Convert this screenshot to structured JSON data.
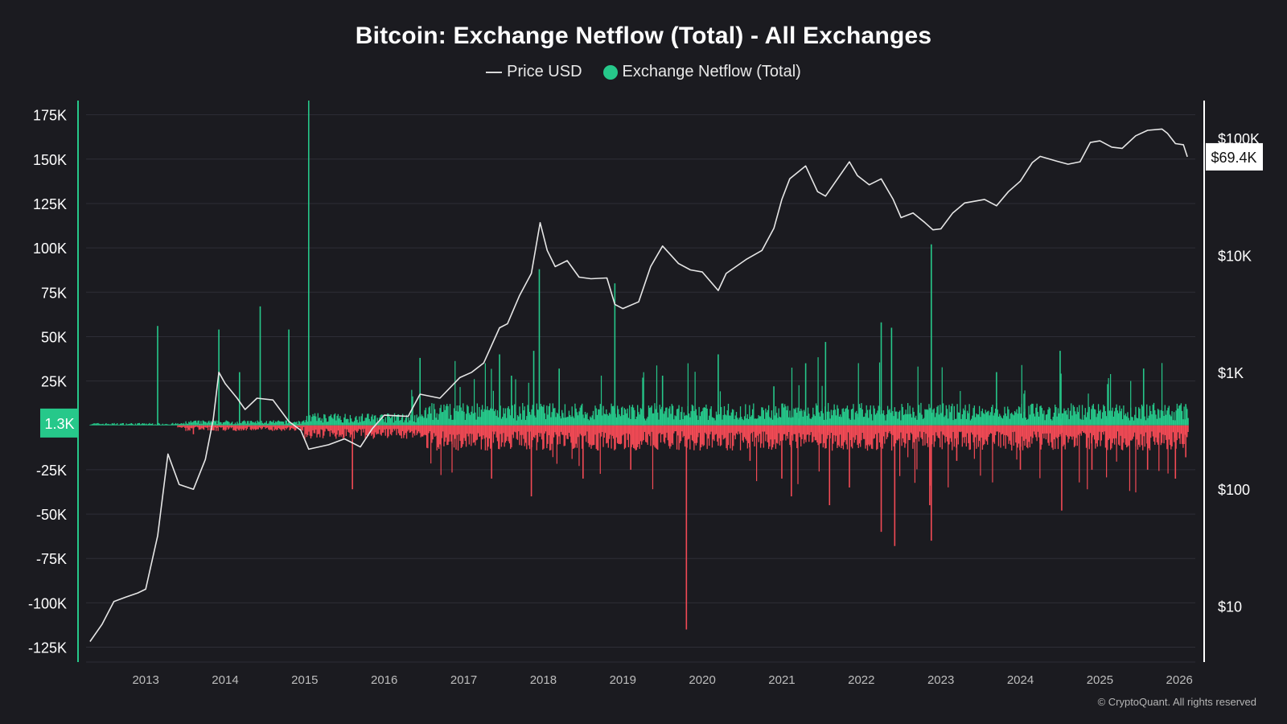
{
  "colors": {
    "background": "#1b1b20",
    "inflow": "#26c88a",
    "outflow": "#f24a55",
    "price": "#e6e6e6",
    "grid": "#2e2e36"
  },
  "footer": {
    "copyright": "© CryptoQuant. All rights reserved"
  },
  "chart_data": {
    "type": "bar",
    "title": "Bitcoin: Exchange Netflow (Total) - All Exchanges",
    "legend": {
      "placement": "top-center",
      "entries": [
        "Price USD",
        "Exchange Netflow (Total)"
      ]
    },
    "grid": true,
    "x_range": [
      2012.25,
      2026.2
    ],
    "x_ticks": [
      "2013",
      "2014",
      "2015",
      "2016",
      "2017",
      "2018",
      "2019",
      "2020",
      "2021",
      "2022",
      "2023",
      "2024",
      "2025",
      "2026"
    ],
    "left_axis": {
      "range": [
        -132000,
        183000
      ],
      "ticks": [
        175000,
        150000,
        125000,
        100000,
        75000,
        50000,
        25000,
        -25000,
        -50000,
        -75000,
        -100000,
        -125000
      ],
      "tick_labels": [
        "175K",
        "150K",
        "125K",
        "100K",
        "75K",
        "50K",
        "25K",
        "-25K",
        "-50K",
        "-75K",
        "-100K",
        "-125K"
      ],
      "current_value_label": "1.3K"
    },
    "right_axis": {
      "scale": "log",
      "range": [
        3.5,
        210000
      ],
      "ticks": [
        100000,
        10000,
        1000,
        100,
        10
      ],
      "tick_labels": [
        "$100K",
        "$10K",
        "$1K",
        "$100",
        "$10"
      ],
      "current_value_label": "$69.4K"
    },
    "series": [
      {
        "name": "Price USD",
        "type": "line",
        "axis": "right",
        "points": [
          [
            2012.3,
            5
          ],
          [
            2012.45,
            7
          ],
          [
            2012.6,
            11
          ],
          [
            2012.75,
            12
          ],
          [
            2012.9,
            13
          ],
          [
            2013.0,
            14
          ],
          [
            2013.15,
            40
          ],
          [
            2013.28,
            200
          ],
          [
            2013.42,
            110
          ],
          [
            2013.6,
            100
          ],
          [
            2013.75,
            180
          ],
          [
            2013.85,
            400
          ],
          [
            2013.92,
            1000
          ],
          [
            2014.0,
            800
          ],
          [
            2014.15,
            600
          ],
          [
            2014.25,
            480
          ],
          [
            2014.4,
            600
          ],
          [
            2014.6,
            580
          ],
          [
            2014.8,
            380
          ],
          [
            2014.95,
            320
          ],
          [
            2015.05,
            220
          ],
          [
            2015.3,
            240
          ],
          [
            2015.5,
            270
          ],
          [
            2015.7,
            230
          ],
          [
            2015.85,
            330
          ],
          [
            2016.0,
            430
          ],
          [
            2016.3,
            420
          ],
          [
            2016.45,
            650
          ],
          [
            2016.7,
            600
          ],
          [
            2016.95,
            900
          ],
          [
            2017.1,
            1000
          ],
          [
            2017.25,
            1200
          ],
          [
            2017.45,
            2400
          ],
          [
            2017.55,
            2600
          ],
          [
            2017.7,
            4500
          ],
          [
            2017.85,
            7000
          ],
          [
            2017.96,
            19000
          ],
          [
            2018.05,
            11000
          ],
          [
            2018.15,
            8000
          ],
          [
            2018.3,
            9000
          ],
          [
            2018.45,
            6500
          ],
          [
            2018.6,
            6300
          ],
          [
            2018.8,
            6400
          ],
          [
            2018.9,
            3800
          ],
          [
            2019.0,
            3500
          ],
          [
            2019.2,
            4000
          ],
          [
            2019.35,
            8000
          ],
          [
            2019.5,
            12000
          ],
          [
            2019.7,
            8500
          ],
          [
            2019.85,
            7500
          ],
          [
            2020.0,
            7200
          ],
          [
            2020.2,
            5000
          ],
          [
            2020.3,
            7000
          ],
          [
            2020.55,
            9200
          ],
          [
            2020.75,
            11000
          ],
          [
            2020.9,
            17000
          ],
          [
            2021.0,
            30000
          ],
          [
            2021.1,
            45000
          ],
          [
            2021.3,
            58000
          ],
          [
            2021.45,
            35000
          ],
          [
            2021.55,
            32000
          ],
          [
            2021.7,
            45000
          ],
          [
            2021.85,
            63000
          ],
          [
            2021.95,
            48000
          ],
          [
            2022.1,
            40000
          ],
          [
            2022.25,
            45000
          ],
          [
            2022.4,
            30000
          ],
          [
            2022.5,
            21000
          ],
          [
            2022.65,
            23000
          ],
          [
            2022.8,
            19000
          ],
          [
            2022.9,
            16500
          ],
          [
            2023.0,
            16800
          ],
          [
            2023.15,
            23000
          ],
          [
            2023.3,
            28000
          ],
          [
            2023.55,
            30000
          ],
          [
            2023.7,
            26500
          ],
          [
            2023.85,
            35000
          ],
          [
            2024.0,
            43000
          ],
          [
            2024.15,
            62000
          ],
          [
            2024.25,
            70000
          ],
          [
            2024.45,
            64000
          ],
          [
            2024.6,
            60000
          ],
          [
            2024.75,
            63000
          ],
          [
            2024.88,
            92000
          ],
          [
            2025.0,
            95000
          ],
          [
            2025.15,
            84000
          ],
          [
            2025.28,
            82000
          ],
          [
            2025.45,
            105000
          ],
          [
            2025.6,
            117000
          ],
          [
            2025.78,
            120000
          ],
          [
            2025.85,
            110000
          ],
          [
            2025.95,
            90000
          ],
          [
            2026.05,
            88000
          ],
          [
            2026.1,
            69400
          ]
        ]
      },
      {
        "name": "Exchange Netflow (Total)",
        "type": "bar",
        "axis": "left",
        "points": [
          [
            2013.15,
            56000
          ],
          [
            2013.6,
            -5000
          ],
          [
            2013.92,
            54000
          ],
          [
            2014.18,
            30000
          ],
          [
            2014.44,
            67000
          ],
          [
            2014.8,
            54000
          ],
          [
            2015.05,
            183000
          ],
          [
            2015.6,
            -36000
          ],
          [
            2016.45,
            38000
          ],
          [
            2017.35,
            -30000
          ],
          [
            2017.45,
            40000
          ],
          [
            2017.6,
            28000
          ],
          [
            2017.85,
            -40000
          ],
          [
            2017.88,
            42000
          ],
          [
            2017.95,
            88000
          ],
          [
            2018.2,
            32000
          ],
          [
            2018.5,
            -30000
          ],
          [
            2018.9,
            80000
          ],
          [
            2019.1,
            -25000
          ],
          [
            2019.5,
            28000
          ],
          [
            2019.8,
            -115000
          ],
          [
            2020.2,
            40000
          ],
          [
            2020.6,
            -20000
          ],
          [
            2020.9,
            22000
          ],
          [
            2021.0,
            -30000
          ],
          [
            2021.12,
            -40000
          ],
          [
            2021.3,
            35000
          ],
          [
            2021.55,
            47000
          ],
          [
            2021.6,
            -45000
          ],
          [
            2021.85,
            -35000
          ],
          [
            2022.25,
            58000
          ],
          [
            2022.25,
            -60000
          ],
          [
            2022.38,
            55000
          ],
          [
            2022.42,
            -68000
          ],
          [
            2022.88,
            102000
          ],
          [
            2022.88,
            -65000
          ],
          [
            2022.86,
            -45000
          ],
          [
            2023.2,
            -20000
          ],
          [
            2023.7,
            30000
          ],
          [
            2024.0,
            -25000
          ],
          [
            2024.5,
            42000
          ],
          [
            2024.52,
            -48000
          ],
          [
            2024.9,
            -25000
          ],
          [
            2025.55,
            32000
          ],
          [
            2025.6,
            -25000
          ],
          [
            2025.95,
            -30000
          ],
          [
            2026.08,
            12000
          ],
          [
            2026.08,
            -18000
          ]
        ]
      }
    ]
  }
}
